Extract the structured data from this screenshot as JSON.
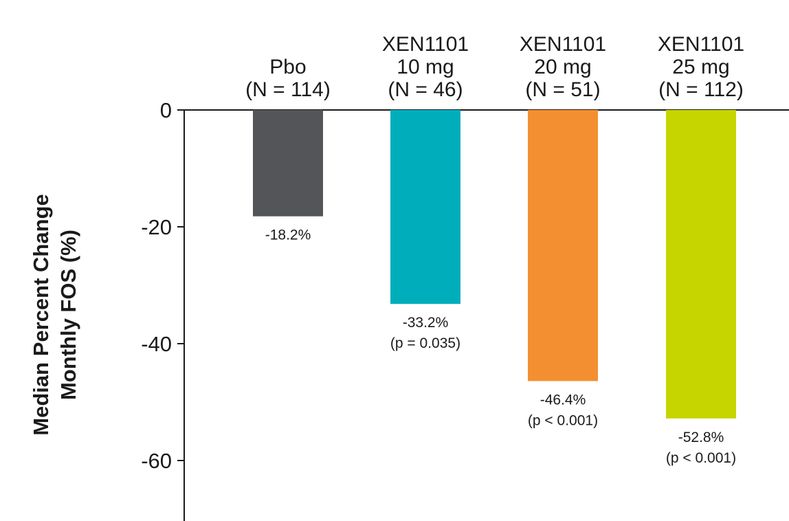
{
  "chart_data": {
    "type": "bar",
    "ylabel": [
      "Median Percent Change",
      "Monthly FOS (%)"
    ],
    "ylim": [
      -70,
      0
    ],
    "yticks": [
      0,
      -20,
      -40,
      -60
    ],
    "grid": false,
    "categories": [
      {
        "lines": [
          "Pbo",
          "(N = 114)"
        ],
        "value": -18.2,
        "value_label": "-18.2%",
        "p_label": "",
        "color": "#545559"
      },
      {
        "lines": [
          "XEN1101",
          "10 mg",
          "(N = 46)"
        ],
        "value": -33.2,
        "value_label": "-33.2%",
        "p_label": "(p = 0.035)",
        "color": "#00AEBB"
      },
      {
        "lines": [
          "XEN1101",
          "20 mg",
          "(N = 51)"
        ],
        "value": -46.4,
        "value_label": "-46.4%",
        "p_label": "(p < 0.001)",
        "color": "#F48F31"
      },
      {
        "lines": [
          "XEN1101",
          "25 mg",
          "(N = 112)"
        ],
        "value": -52.8,
        "value_label": "-52.8%",
        "p_label": "(p < 0.001)",
        "color": "#C6D500"
      }
    ]
  }
}
